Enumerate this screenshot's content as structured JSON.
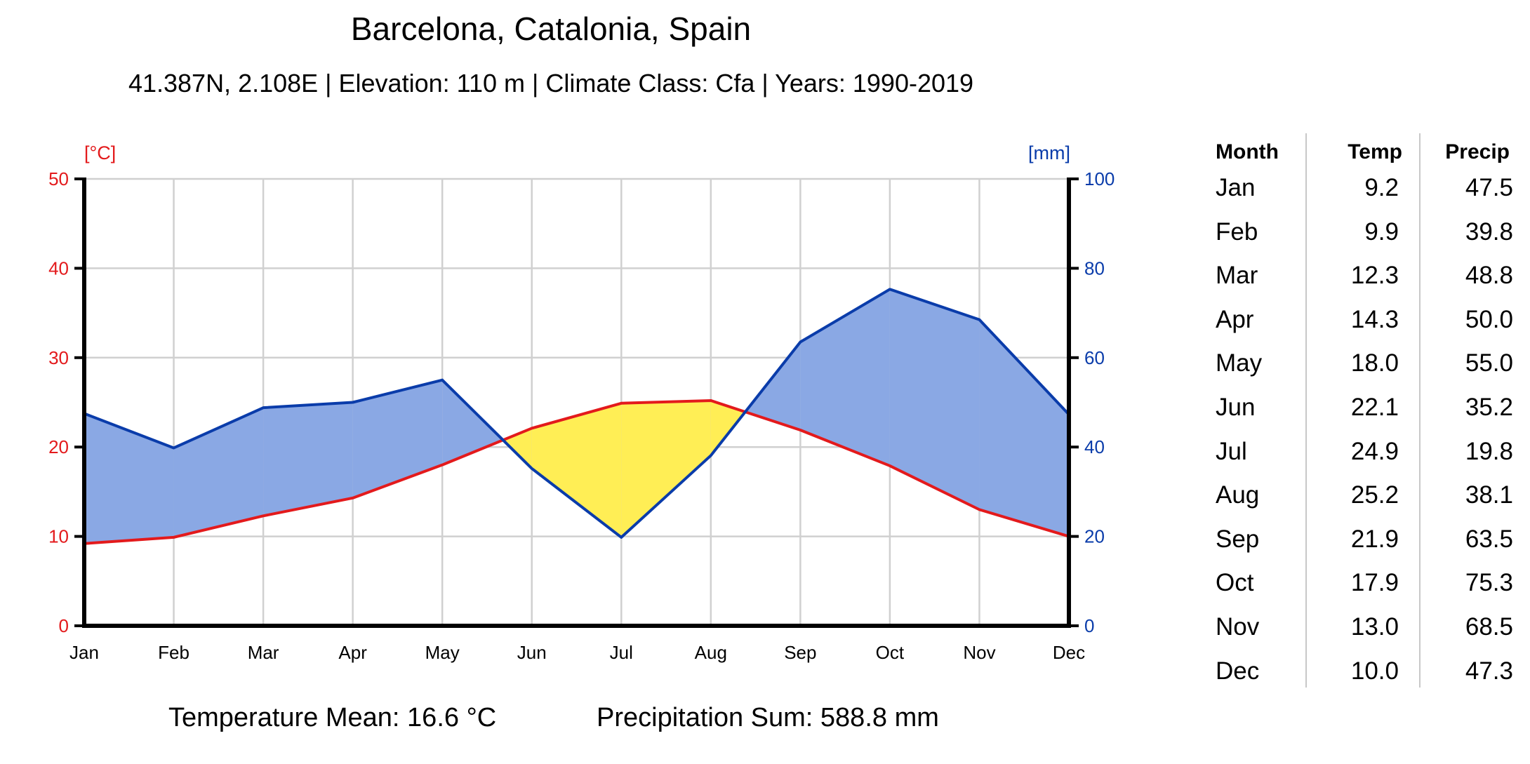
{
  "title": "Barcelona, Catalonia, Spain",
  "subtitle": "41.387N, 2.108E | Elevation: 110 m | Climate Class: Cfa | Years: 1990-2019",
  "summary": {
    "temp_mean": "Temperature Mean: 16.6 °C",
    "precip_sum": "Precipitation Sum: 588.8 mm"
  },
  "table": {
    "headers": [
      "Month",
      "Temp",
      "Precip"
    ],
    "rows": [
      [
        "Jan",
        "9.2",
        "47.5"
      ],
      [
        "Feb",
        "9.9",
        "39.8"
      ],
      [
        "Mar",
        "12.3",
        "48.8"
      ],
      [
        "Apr",
        "14.3",
        "50.0"
      ],
      [
        "May",
        "18.0",
        "55.0"
      ],
      [
        "Jun",
        "22.1",
        "35.2"
      ],
      [
        "Jul",
        "24.9",
        "19.8"
      ],
      [
        "Aug",
        "25.2",
        "38.1"
      ],
      [
        "Sep",
        "21.9",
        "63.5"
      ],
      [
        "Oct",
        "17.9",
        "75.3"
      ],
      [
        "Nov",
        "13.0",
        "68.5"
      ],
      [
        "Dec",
        "10.0",
        "47.3"
      ]
    ]
  },
  "chart_data": {
    "type": "line",
    "title": "Barcelona, Catalonia, Spain",
    "subtitle": "41.387N, 2.108E | Elevation: 110 m | Climate Class: Cfa | Years: 1990-2019",
    "categories": [
      "Jan",
      "Feb",
      "Mar",
      "Apr",
      "May",
      "Jun",
      "Jul",
      "Aug",
      "Sep",
      "Oct",
      "Nov",
      "Dec"
    ],
    "series": [
      {
        "name": "Temp",
        "axis": "left",
        "unit": "[°C]",
        "values": [
          9.2,
          9.9,
          12.3,
          14.3,
          18.0,
          22.1,
          24.9,
          25.2,
          21.9,
          17.9,
          13.0,
          10.0
        ],
        "color": "#e31a1c"
      },
      {
        "name": "Precip",
        "axis": "right",
        "unit": "[mm]",
        "values": [
          47.5,
          39.8,
          48.8,
          50.0,
          55.0,
          35.2,
          19.8,
          38.1,
          63.5,
          75.3,
          68.5,
          47.3
        ],
        "color": "#0a3caa"
      }
    ],
    "left_axis": {
      "label": "[°C]",
      "range": [
        0,
        50
      ],
      "ticks": [
        0,
        10,
        20,
        30,
        40,
        50
      ],
      "color": "#e31a1c"
    },
    "right_axis": {
      "label": "[mm]",
      "range": [
        0,
        100
      ],
      "ticks": [
        0,
        20,
        40,
        60,
        80,
        100
      ],
      "color": "#0a3caa"
    },
    "humid_fill_color": "#8aa8e4",
    "arid_fill_color": "#ffee55",
    "grid": true
  }
}
